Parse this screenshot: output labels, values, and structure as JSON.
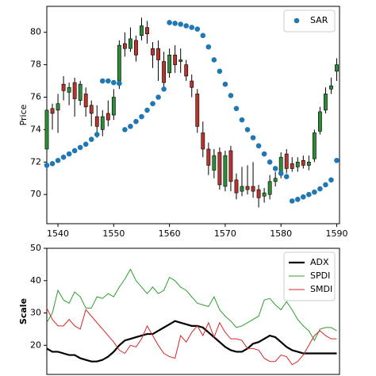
{
  "chart_data": [
    {
      "type": "candlestick",
      "ylabel": "Price",
      "x": [
        1538,
        1539,
        1540,
        1541,
        1542,
        1543,
        1544,
        1545,
        1546,
        1547,
        1548,
        1549,
        1550,
        1551,
        1552,
        1553,
        1554,
        1555,
        1556,
        1557,
        1558,
        1559,
        1560,
        1561,
        1562,
        1563,
        1564,
        1565,
        1566,
        1567,
        1568,
        1569,
        1570,
        1571,
        1572,
        1573,
        1574,
        1575,
        1576,
        1577,
        1578,
        1579,
        1580,
        1581,
        1582,
        1583,
        1584,
        1585,
        1586,
        1587,
        1588,
        1589,
        1590
      ],
      "open": [
        72.8,
        75.3,
        75.2,
        76.8,
        76.3,
        76.9,
        75.8,
        76.2,
        75.5,
        74.8,
        74.0,
        75.0,
        74.9,
        77.0,
        79.3,
        79.0,
        79.5,
        79.8,
        80.3,
        79.0,
        79.0,
        78.2,
        77.5,
        78.6,
        78.2,
        78.0,
        77.0,
        76.2,
        73.8,
        72.8,
        71.5,
        72.6,
        70.5,
        72.7,
        70.9,
        70.2,
        70.5,
        70.5,
        70.3,
        69.9,
        70.0,
        70.8,
        71.3,
        72.5,
        71.9,
        71.7,
        72.1,
        71.8,
        72.2,
        73.9,
        75.2,
        76.5,
        77.6
      ],
      "high": [
        75.5,
        75.6,
        76.2,
        77.3,
        76.9,
        77.2,
        77.0,
        76.6,
        75.8,
        75.5,
        75.2,
        75.8,
        76.5,
        79.5,
        80.0,
        80.3,
        79.8,
        80.9,
        80.7,
        79.4,
        79.5,
        78.8,
        79.0,
        79.2,
        79.0,
        78.3,
        77.4,
        76.5,
        74.5,
        73.2,
        72.8,
        72.9,
        72.7,
        73.0,
        71.3,
        71.7,
        71.8,
        72.0,
        70.6,
        70.4,
        71.2,
        71.4,
        72.6,
        72.8,
        72.3,
        72.3,
        72.4,
        72.4,
        74.0,
        75.4,
        76.6,
        77.2,
        78.4
      ],
      "low": [
        72.5,
        74.0,
        73.8,
        75.8,
        75.5,
        74.8,
        75.5,
        74.8,
        74.2,
        73.5,
        73.6,
        74.2,
        74.6,
        76.5,
        78.5,
        78.8,
        78.2,
        79.5,
        79.3,
        77.8,
        77.0,
        76.5,
        77.2,
        77.5,
        77.5,
        77.0,
        76.0,
        73.8,
        72.3,
        71.2,
        71.0,
        70.3,
        70.2,
        70.2,
        69.7,
        69.9,
        70.0,
        69.8,
        69.2,
        69.5,
        69.7,
        70.5,
        71.0,
        71.3,
        71.4,
        71.4,
        71.6,
        71.5,
        72.0,
        73.7,
        75.0,
        76.2,
        77.0
      ],
      "close": [
        75.2,
        75.0,
        75.6,
        76.4,
        76.6,
        75.9,
        76.8,
        75.4,
        75.0,
        74.2,
        74.8,
        74.6,
        76.0,
        79.2,
        79.0,
        79.6,
        78.6,
        80.4,
        79.9,
        78.6,
        78.3,
        76.9,
        78.6,
        78.0,
        78.3,
        77.3,
        76.6,
        74.2,
        72.8,
        71.8,
        72.4,
        70.6,
        72.4,
        70.8,
        70.1,
        70.5,
        70.3,
        70.2,
        69.8,
        70.1,
        70.8,
        71.0,
        72.3,
        71.6,
        71.6,
        72.0,
        71.8,
        72.0,
        73.8,
        75.1,
        76.2,
        76.7,
        78.0
      ],
      "up_color": "#2e8b3a",
      "down_color": "#b5342c",
      "series": [
        {
          "name": "SAR",
          "type": "scatter",
          "color": "#1f77b4",
          "values": [
            71.8,
            71.9,
            72.1,
            72.3,
            72.5,
            72.7,
            72.9,
            73.1,
            73.4,
            73.7,
            77.0,
            77.0,
            76.9,
            76.85,
            74.0,
            74.2,
            74.5,
            74.8,
            75.2,
            75.6,
            76.0,
            76.5,
            80.6,
            80.55,
            80.5,
            80.4,
            80.3,
            80.2,
            79.8,
            79.1,
            78.3,
            77.6,
            76.8,
            76.1,
            75.3,
            74.6,
            74.0,
            73.5,
            73.0,
            72.5,
            72.0,
            71.6,
            71.3,
            71.1,
            69.6,
            69.7,
            69.85,
            70.0,
            70.15,
            70.35,
            70.6,
            70.9,
            72.1
          ]
        }
      ],
      "xlim": [
        1538,
        1590.5
      ],
      "xticks": [
        1540,
        1550,
        1560,
        1570,
        1580,
        1590
      ],
      "ylim": [
        68.2,
        81.6
      ],
      "yticks": [
        70,
        72,
        74,
        76,
        78,
        80
      ],
      "legend": "upper right"
    },
    {
      "type": "line",
      "ylabel": "Scale",
      "x": [
        1538,
        1539,
        1540,
        1541,
        1542,
        1543,
        1544,
        1545,
        1546,
        1547,
        1548,
        1549,
        1550,
        1551,
        1552,
        1553,
        1554,
        1555,
        1556,
        1557,
        1558,
        1559,
        1560,
        1561,
        1562,
        1563,
        1564,
        1565,
        1566,
        1567,
        1568,
        1569,
        1570,
        1571,
        1572,
        1573,
        1574,
        1575,
        1576,
        1577,
        1578,
        1579,
        1580,
        1581,
        1582,
        1583,
        1584,
        1585,
        1586,
        1587,
        1588,
        1589,
        1590
      ],
      "series": [
        {
          "name": "ADX",
          "color": "#000000",
          "values": [
            19,
            18,
            18,
            17.5,
            17,
            17,
            16,
            15.5,
            15,
            15,
            15.5,
            16.5,
            18,
            20,
            21.5,
            22,
            22.5,
            23,
            23.5,
            23.5,
            24.5,
            25.5,
            26.5,
            27.5,
            27,
            26.5,
            26,
            26,
            25.5,
            24,
            22.5,
            21,
            19.5,
            18.5,
            18,
            18,
            19,
            20.5,
            21,
            22,
            23,
            22.5,
            21,
            19.5,
            18.5,
            18,
            17.5,
            17.5,
            17.5,
            17.5,
            17.5,
            17.5,
            17.5
          ]
        },
        {
          "name": "SPDI",
          "color": "#2ca02c",
          "values": [
            27,
            30,
            37,
            34,
            33,
            36.5,
            35,
            31.5,
            31.5,
            35,
            34.5,
            36,
            35,
            38,
            40.5,
            43.5,
            40,
            38,
            36,
            38,
            36,
            37,
            41,
            40,
            38,
            37,
            35,
            33,
            32.5,
            32,
            35,
            31,
            29,
            27.5,
            25.5,
            26,
            27,
            28,
            29,
            34,
            34.5,
            32.5,
            31,
            33.5,
            31,
            28,
            26,
            24.5,
            21.5,
            25,
            25.5,
            25.5,
            24.5
          ]
        },
        {
          "name": "SMDI",
          "color": "#d62728",
          "values": [
            31.5,
            28,
            26,
            26,
            28,
            26,
            25,
            31,
            29,
            27,
            25,
            23,
            21,
            18.5,
            17.5,
            20,
            19.5,
            22,
            26,
            23,
            20,
            17.5,
            16.5,
            16,
            23,
            21,
            24,
            26,
            23,
            27,
            22.5,
            27,
            24,
            22,
            22,
            21.5,
            19,
            19,
            18.5,
            16,
            15,
            15,
            17,
            16.5,
            14,
            15,
            17,
            20,
            23,
            24.5,
            23,
            22,
            22
          ]
        }
      ],
      "xlim": [
        1538,
        1590.5
      ],
      "ylim": [
        11,
        50
      ],
      "yticks": [
        20,
        30,
        40,
        50
      ],
      "legend": "upper right"
    }
  ]
}
